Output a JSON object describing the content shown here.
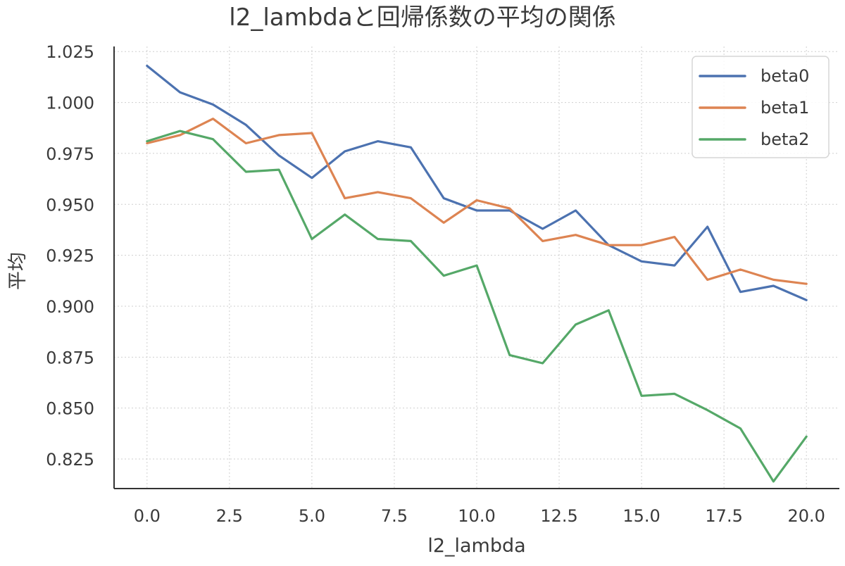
{
  "chart_data": {
    "type": "line",
    "title": "l2_lambdaと回帰係数の平均の関係",
    "xlabel": "l2_lambda",
    "ylabel": "平均",
    "xlim": [
      -1.0,
      21.0
    ],
    "ylim": [
      0.8105,
      1.0275
    ],
    "xticks": [
      0.0,
      2.5,
      5.0,
      7.5,
      10.0,
      12.5,
      15.0,
      17.5,
      20.0
    ],
    "xtick_labels": [
      "0.0",
      "2.5",
      "5.0",
      "7.5",
      "10.0",
      "12.5",
      "15.0",
      "17.5",
      "20.0"
    ],
    "yticks": [
      0.825,
      0.85,
      0.875,
      0.9,
      0.925,
      0.95,
      0.975,
      1.0,
      1.025
    ],
    "ytick_labels": [
      "0.825",
      "0.850",
      "0.875",
      "0.900",
      "0.925",
      "0.950",
      "0.975",
      "1.000",
      "1.025"
    ],
    "grid": true,
    "legend_position": "top-right",
    "x": [
      0,
      1,
      2,
      3,
      4,
      5,
      6,
      7,
      8,
      9,
      10,
      11,
      12,
      13,
      14,
      15,
      16,
      17,
      18,
      19,
      20
    ],
    "series": [
      {
        "name": "beta0",
        "color": "#4c72b0",
        "values": [
          1.018,
          1.005,
          0.999,
          0.989,
          0.974,
          0.963,
          0.976,
          0.981,
          0.978,
          0.953,
          0.947,
          0.947,
          0.938,
          0.947,
          0.93,
          0.922,
          0.92,
          0.939,
          0.907,
          0.91,
          0.903
        ]
      },
      {
        "name": "beta1",
        "color": "#dd8452",
        "values": [
          0.98,
          0.984,
          0.992,
          0.98,
          0.984,
          0.985,
          0.953,
          0.956,
          0.953,
          0.941,
          0.952,
          0.948,
          0.932,
          0.935,
          0.93,
          0.93,
          0.934,
          0.913,
          0.918,
          0.913,
          0.911
        ]
      },
      {
        "name": "beta2",
        "color": "#55a868",
        "values": [
          0.981,
          0.986,
          0.982,
          0.966,
          0.967,
          0.933,
          0.945,
          0.933,
          0.932,
          0.915,
          0.92,
          0.876,
          0.872,
          0.891,
          0.898,
          0.856,
          0.857,
          0.849,
          0.84,
          0.814,
          0.836
        ]
      }
    ]
  }
}
